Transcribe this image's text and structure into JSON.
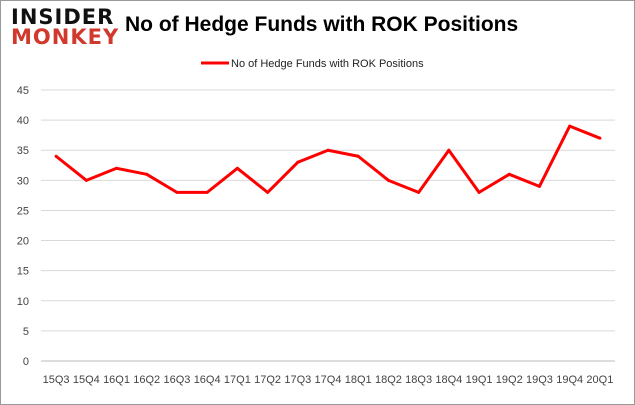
{
  "logo": {
    "line1": "INSIDER",
    "line2": "MONKEY"
  },
  "chart_data": {
    "type": "line",
    "title": "No of Hedge Funds with ROK Positions",
    "categories": [
      "15Q3",
      "15Q4",
      "16Q1",
      "16Q2",
      "16Q3",
      "16Q4",
      "17Q1",
      "17Q2",
      "17Q3",
      "17Q4",
      "18Q1",
      "18Q2",
      "18Q3",
      "18Q4",
      "19Q1",
      "19Q2",
      "19Q3",
      "19Q4",
      "20Q1"
    ],
    "series": [
      {
        "name": "No of Hedge Funds with ROK Positions",
        "color": "#ff0000",
        "values": [
          34,
          30,
          32,
          31,
          28,
          28,
          32,
          28,
          33,
          35,
          34,
          30,
          28,
          35,
          28,
          31,
          29,
          39,
          37
        ]
      }
    ],
    "ylim": [
      0,
      45
    ],
    "yticks": [
      0,
      5,
      10,
      15,
      20,
      25,
      30,
      35,
      40,
      45
    ],
    "grid": true,
    "legend": "top-center",
    "xlabel": "",
    "ylabel": ""
  }
}
